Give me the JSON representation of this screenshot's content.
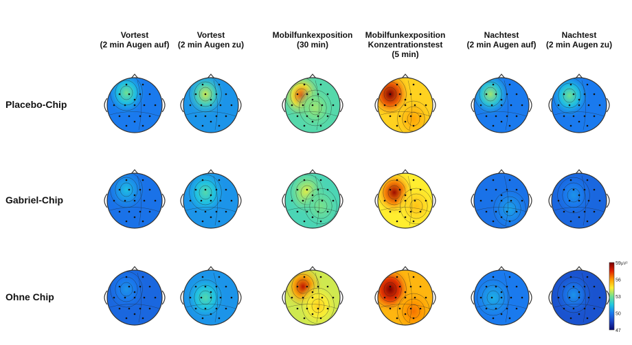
{
  "columns": [
    {
      "line1": "Vortest",
      "line2": "(2 min Augen auf)",
      "line3": ""
    },
    {
      "line1": "Vortest",
      "line2": "(2 min Augen zu)",
      "line3": ""
    },
    {
      "line1": "Mobilfunkexposition",
      "line2": "(30 min)",
      "line3": ""
    },
    {
      "line1": "Mobilfunkexposition",
      "line2": "Konzentrationstest",
      "line3": "(5 min)"
    },
    {
      "line1": "Nachtest",
      "line2": "(2 min Augen auf)",
      "line3": ""
    },
    {
      "line1": "Nachtest",
      "line2": "(2 min Augen zu)",
      "line3": ""
    }
  ],
  "rows": [
    {
      "label": "Placebo-Chip"
    },
    {
      "label": "Gabriel-Chip"
    },
    {
      "label": "Ohne Chip"
    }
  ],
  "colorbar": {
    "unit": "µV²",
    "ticks": [
      "59",
      "56",
      "53",
      "50",
      "47"
    ],
    "colors": [
      "#7a0000",
      "#e02000",
      "#ff9a00",
      "#ffee30",
      "#70e090",
      "#20c8e0",
      "#1a7aee",
      "#1a40c0",
      "#0a0a70"
    ]
  },
  "maps": [
    [
      {
        "base": 50.0,
        "spots": [
          [
            -0.3,
            -0.45,
            3.0
          ]
        ]
      },
      {
        "base": 50.5,
        "spots": [
          [
            -0.2,
            -0.4,
            3.5
          ]
        ]
      },
      {
        "base": 52.5,
        "spots": [
          [
            -0.4,
            -0.35,
            4.5
          ],
          [
            0.1,
            0.1,
            1.0
          ]
        ]
      },
      {
        "base": 55.0,
        "spots": [
          [
            -0.55,
            -0.4,
            4.0
          ],
          [
            0.3,
            0.5,
            0.8
          ]
        ]
      },
      {
        "base": 50.0,
        "spots": [
          [
            -0.4,
            -0.4,
            3.5
          ]
        ]
      },
      {
        "base": 50.0,
        "spots": [
          [
            -0.35,
            -0.35,
            3.0
          ]
        ]
      }
    ],
    [
      {
        "base": 49.8,
        "spots": [
          [
            -0.3,
            -0.4,
            1.5
          ]
        ]
      },
      {
        "base": 50.5,
        "spots": [
          [
            -0.2,
            -0.3,
            2.0
          ]
        ]
      },
      {
        "base": 52.3,
        "spots": [
          [
            -0.2,
            -0.3,
            2.0
          ],
          [
            0.3,
            0.2,
            0.8
          ]
        ]
      },
      {
        "base": 54.5,
        "spots": [
          [
            -0.4,
            -0.3,
            4.0
          ],
          [
            0.4,
            0.2,
            0.8
          ]
        ]
      },
      {
        "base": 49.8,
        "spots": [
          [
            0.3,
            0.3,
            1.0
          ]
        ]
      },
      {
        "base": 49.5,
        "spots": [
          [
            -0.2,
            -0.2,
            1.0
          ]
        ]
      }
    ],
    [
      {
        "base": 49.5,
        "spots": [
          [
            -0.3,
            -0.3,
            1.0
          ]
        ]
      },
      {
        "base": 50.5,
        "spots": [
          [
            -0.2,
            0.0,
            2.0
          ]
        ]
      },
      {
        "base": 54.0,
        "spots": [
          [
            -0.35,
            -0.4,
            4.0
          ],
          [
            0.2,
            0.3,
            1.0
          ]
        ]
      },
      {
        "base": 55.5,
        "spots": [
          [
            -0.55,
            -0.3,
            4.0
          ],
          [
            0.3,
            0.5,
            1.0
          ]
        ]
      },
      {
        "base": 50.0,
        "spots": [
          [
            -0.3,
            0.0,
            1.0
          ]
        ]
      },
      {
        "base": 49.0,
        "spots": [
          [
            -0.2,
            -0.1,
            1.5
          ]
        ]
      }
    ]
  ]
}
